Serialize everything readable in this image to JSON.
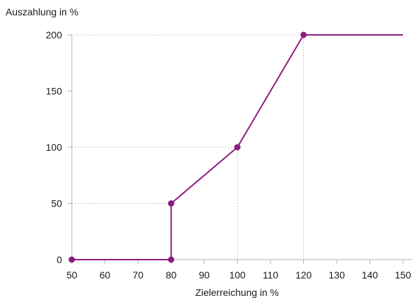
{
  "chart_data": {
    "type": "line",
    "title": "",
    "xlabel": "Zielerreichung in %",
    "ylabel": "Auszahlung in %",
    "xlim": [
      50,
      150
    ],
    "ylim": [
      0,
      200
    ],
    "x_ticks": [
      50,
      60,
      70,
      80,
      90,
      100,
      110,
      120,
      130,
      140,
      150
    ],
    "y_ticks": [
      0,
      50,
      100,
      150,
      200
    ],
    "grid": "dotted guide lines at marked points",
    "colors": {
      "line": "#8e1a7f",
      "axis": "#b5b5b5",
      "guide": "#b5b5b5"
    },
    "series": [
      {
        "x": [
          50,
          80,
          80,
          100,
          120,
          150
        ],
        "y": [
          0,
          0,
          50,
          100,
          200,
          200
        ],
        "markers": [
          {
            "x": 50,
            "y": 0
          },
          {
            "x": 80,
            "y": 0
          },
          {
            "x": 80,
            "y": 50
          },
          {
            "x": 100,
            "y": 100
          },
          {
            "x": 120,
            "y": 200
          }
        ]
      }
    ]
  }
}
